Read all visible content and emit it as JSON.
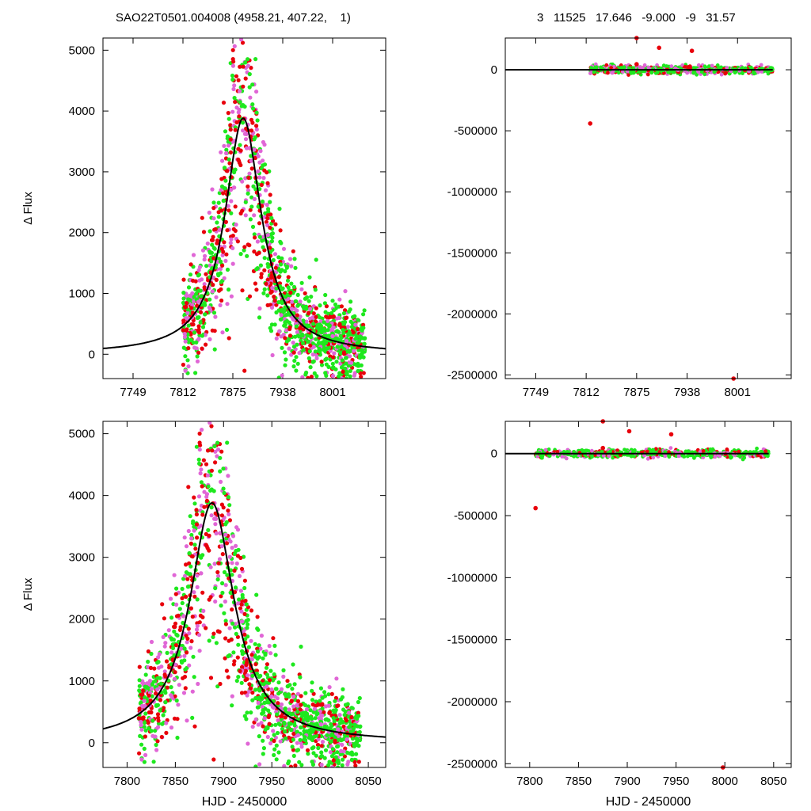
{
  "header": {
    "left": "SAO22T0501.004008 (4958.21, 407.22,    1)",
    "right": "3   11525   17.646   -9.000   -9   31.57"
  },
  "colors": {
    "red": "#e8000b",
    "green": "#1ee81e",
    "magenta": "#e066d6",
    "model": "#000000"
  },
  "chart_data": [
    {
      "id": "top-left",
      "type": "scatter",
      "ylabel": "Δ Flux",
      "xlabel": "",
      "xlim": [
        7711,
        8068
      ],
      "ylim": [
        -400,
        5200
      ],
      "xticks": [
        7749,
        7812,
        7875,
        7938,
        8001
      ],
      "yticks": [
        0,
        1000,
        2000,
        3000,
        4000,
        5000
      ],
      "model": {
        "peak_x": 7888,
        "peak_y": 3880,
        "width": 28
      },
      "series": [
        {
          "color": "red",
          "data": "light curve points"
        },
        {
          "color": "green",
          "data": "light curve points"
        },
        {
          "color": "magenta",
          "data": "light curve points"
        }
      ]
    },
    {
      "id": "top-right",
      "type": "scatter",
      "ylabel": "",
      "xlabel": "",
      "xlim": [
        7711,
        8068
      ],
      "ylim": [
        -2530000,
        260000
      ],
      "xticks": [
        7749,
        7812,
        7875,
        7938,
        8001
      ],
      "yticks": [
        0,
        -500000,
        -1000000,
        -1500000,
        -2000000,
        -2500000
      ],
      "ytick_labels": [
        "0",
        "-500000",
        "-1000000",
        "-1500000",
        "-2000000",
        "-2500000"
      ],
      "outliers": [
        {
          "x": 7817,
          "y": -440000
        },
        {
          "x": 7875,
          "y": 260000
        },
        {
          "x": 7875,
          "y": 45000
        },
        {
          "x": 7903,
          "y": 180000
        },
        {
          "x": 7944,
          "y": 155000
        },
        {
          "x": 7996,
          "y": -2530000
        }
      ]
    },
    {
      "id": "bottom-left",
      "type": "scatter",
      "ylabel": "Δ Flux",
      "xlabel": "HJD - 2450000",
      "xlim": [
        7775,
        8068
      ],
      "ylim": [
        -400,
        5200
      ],
      "xticks": [
        7800,
        7850,
        7900,
        7950,
        8000,
        8050
      ],
      "yticks": [
        0,
        1000,
        2000,
        3000,
        4000,
        5000
      ],
      "model": {
        "peak_x": 7888,
        "peak_y": 3880,
        "width": 28
      },
      "series": [
        {
          "color": "red",
          "data": "light curve points"
        },
        {
          "color": "green",
          "data": "light curve points"
        },
        {
          "color": "magenta",
          "data": "light curve points"
        }
      ]
    },
    {
      "id": "bottom-right",
      "type": "scatter",
      "ylabel": "",
      "xlabel": "HJD - 2450000",
      "xlim": [
        7775,
        8068
      ],
      "ylim": [
        -2530000,
        260000
      ],
      "xticks": [
        7800,
        7850,
        7900,
        7950,
        8000,
        8050
      ],
      "yticks": [
        0,
        -500000,
        -1000000,
        -1500000,
        -2000000,
        -2500000
      ],
      "ytick_labels": [
        "0",
        "-500000",
        "-1000000",
        "-1500000",
        "-2000000",
        "-2500000"
      ],
      "outliers": [
        {
          "x": 7806,
          "y": -440000
        },
        {
          "x": 7875,
          "y": 260000
        },
        {
          "x": 7875,
          "y": 45000
        },
        {
          "x": 7902,
          "y": 180000
        },
        {
          "x": 7945,
          "y": 155000
        },
        {
          "x": 7998,
          "y": -2530000
        }
      ]
    }
  ]
}
